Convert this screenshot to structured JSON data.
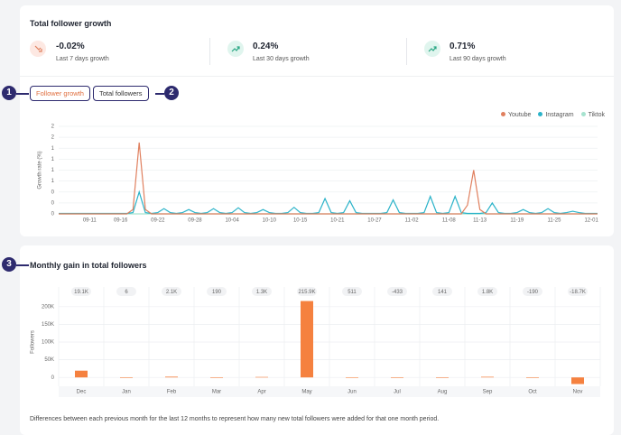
{
  "header": {
    "title": "Total follower growth"
  },
  "stats": [
    {
      "value": "-0.02%",
      "label": "Last 7 days growth"
    },
    {
      "value": "0.24%",
      "label": "Last 30 days growth"
    },
    {
      "value": "0.71%",
      "label": "Last 90 days growth"
    }
  ],
  "tabs": [
    "Follower growth",
    "Total followers"
  ],
  "annotations": [
    "1",
    "2",
    "3"
  ],
  "growth_chart": {
    "type": "line",
    "y_label": "Growth rate (%)",
    "legend": "top-right",
    "grid": true,
    "categories": [
      null,
      null,
      null,
      null,
      null,
      "09-11",
      null,
      null,
      null,
      null,
      "09-16",
      null,
      null,
      null,
      null,
      null,
      "09-22",
      null,
      null,
      null,
      null,
      null,
      "09-28",
      null,
      null,
      null,
      null,
      null,
      "10-04",
      null,
      null,
      null,
      null,
      null,
      "10-10",
      null,
      null,
      null,
      null,
      "10-15",
      null,
      null,
      null,
      null,
      null,
      "10-21",
      null,
      null,
      null,
      null,
      null,
      "10-27",
      null,
      null,
      null,
      null,
      null,
      "11-02",
      null,
      null,
      null,
      null,
      null,
      "11-08",
      null,
      null,
      null,
      null,
      "11-13",
      null,
      null,
      null,
      null,
      null,
      "11-19",
      null,
      null,
      null,
      null,
      null,
      "11-25",
      null,
      null,
      null,
      null,
      null,
      "12-01",
      null
    ],
    "series": [
      {
        "name": "Youtube",
        "color": "#e0805f",
        "values": [
          0,
          0,
          0,
          0,
          0,
          0,
          0,
          0,
          0,
          0,
          0,
          0,
          0.1,
          1.63,
          0.1,
          0,
          0,
          0,
          0,
          0,
          0,
          0,
          0,
          0,
          0,
          0,
          0,
          0,
          0,
          0,
          0,
          0,
          0,
          0,
          0,
          0,
          0,
          0,
          0,
          0,
          0,
          0,
          0,
          0,
          0,
          0,
          0,
          0,
          0,
          0,
          0,
          0,
          0,
          0,
          0,
          0,
          0,
          0,
          0,
          0,
          0,
          0,
          0,
          0,
          0,
          0,
          0.2,
          1.0,
          0.1,
          0,
          0,
          0,
          0,
          0,
          0,
          0,
          0,
          0,
          0,
          0,
          0,
          0,
          0,
          0,
          0,
          0,
          0,
          0
        ]
      },
      {
        "name": "Instagram",
        "color": "#2bb3c9",
        "values": [
          0.01,
          0.01,
          0.01,
          0.01,
          0.01,
          0.01,
          0.01,
          0.01,
          0.01,
          0.01,
          0.01,
          0.01,
          0.03,
          0.5,
          0.03,
          0.01,
          0.03,
          0.12,
          0.03,
          0.01,
          0.03,
          0.1,
          0.03,
          0.01,
          0.03,
          0.12,
          0.03,
          0.01,
          0.03,
          0.14,
          0.03,
          0.01,
          0.03,
          0.1,
          0.03,
          0.01,
          0.01,
          0.03,
          0.15,
          0.03,
          0.01,
          0.01,
          0.03,
          0.35,
          0.03,
          0.01,
          0.03,
          0.3,
          0.03,
          0.01,
          0.01,
          0.01,
          0.01,
          0.03,
          0.32,
          0.03,
          0.01,
          0.01,
          0.01,
          0.03,
          0.4,
          0.03,
          0.01,
          0.03,
          0.4,
          0.03,
          0.01,
          0.01,
          0.01,
          0.03,
          0.25,
          0.03,
          0.01,
          0.01,
          0.03,
          0.1,
          0.03,
          0.01,
          0.03,
          0.12,
          0.03,
          0.01,
          0.03,
          0.06,
          0.03,
          0.01,
          0.01,
          0.01
        ]
      },
      {
        "name": "Tiktok",
        "color": "#a6e3cf",
        "values": [
          0,
          0,
          0,
          0,
          0,
          0,
          0,
          0,
          0,
          0,
          0,
          0,
          0,
          0,
          0,
          0,
          0,
          0,
          0,
          0,
          0,
          0,
          0,
          0,
          0,
          0,
          0,
          0,
          0,
          0,
          0,
          0,
          0,
          0,
          0,
          0,
          0,
          0,
          0,
          0,
          0,
          0,
          0,
          0,
          0,
          0,
          0,
          0,
          0,
          0,
          0,
          0,
          0,
          0,
          0,
          0,
          0,
          0,
          0,
          0,
          0,
          0,
          0,
          0,
          0,
          0,
          0,
          0,
          0,
          0,
          0,
          0,
          0,
          0,
          0,
          0,
          0,
          0,
          0,
          0,
          0,
          0,
          0,
          0,
          0,
          0,
          0,
          0
        ]
      }
    ],
    "ylim": [
      0,
      2
    ],
    "yticks": [
      0,
      {
        "value": 0.25,
        "label": "0"
      },
      {
        "value": 0.5,
        "label": "0"
      },
      {
        "value": 0.75,
        "label": "1"
      },
      1,
      {
        "value": 1.25,
        "label": "1"
      },
      {
        "value": 1.5,
        "label": "1"
      },
      {
        "value": 1.75,
        "label": "2"
      },
      2
    ]
  },
  "monthly_chart": {
    "type": "bar",
    "title": "Monthly gain in total followers",
    "y_label": "Followers",
    "color": "#f5813f",
    "grid": true,
    "categories": [
      "Dec",
      "Jan",
      "Feb",
      "Mar",
      "Apr",
      "May",
      "Jun",
      "Jul",
      "Aug",
      "Sep",
      "Oct",
      "Nov"
    ],
    "values": [
      19100,
      6,
      2100,
      190,
      1300,
      215900,
      511,
      -433,
      141,
      1800,
      -190,
      -18700
    ],
    "value_labels": [
      "19.1K",
      "6",
      "2.1K",
      "190",
      "1.3K",
      "215.9K",
      "511",
      "-433",
      "141",
      "1.8K",
      "-190",
      "-18.7K"
    ],
    "ylim": [
      -25000,
      225000
    ],
    "yticks": [
      0,
      {
        "value": 50000,
        "label": "50K"
      },
      {
        "value": 100000,
        "label": "100K"
      },
      {
        "value": 150000,
        "label": "150K"
      },
      {
        "value": 200000,
        "label": "200K"
      }
    ]
  },
  "footnote": "Differences between each previous month for the last 12 months to represent how many new total followers were added for that one month period."
}
